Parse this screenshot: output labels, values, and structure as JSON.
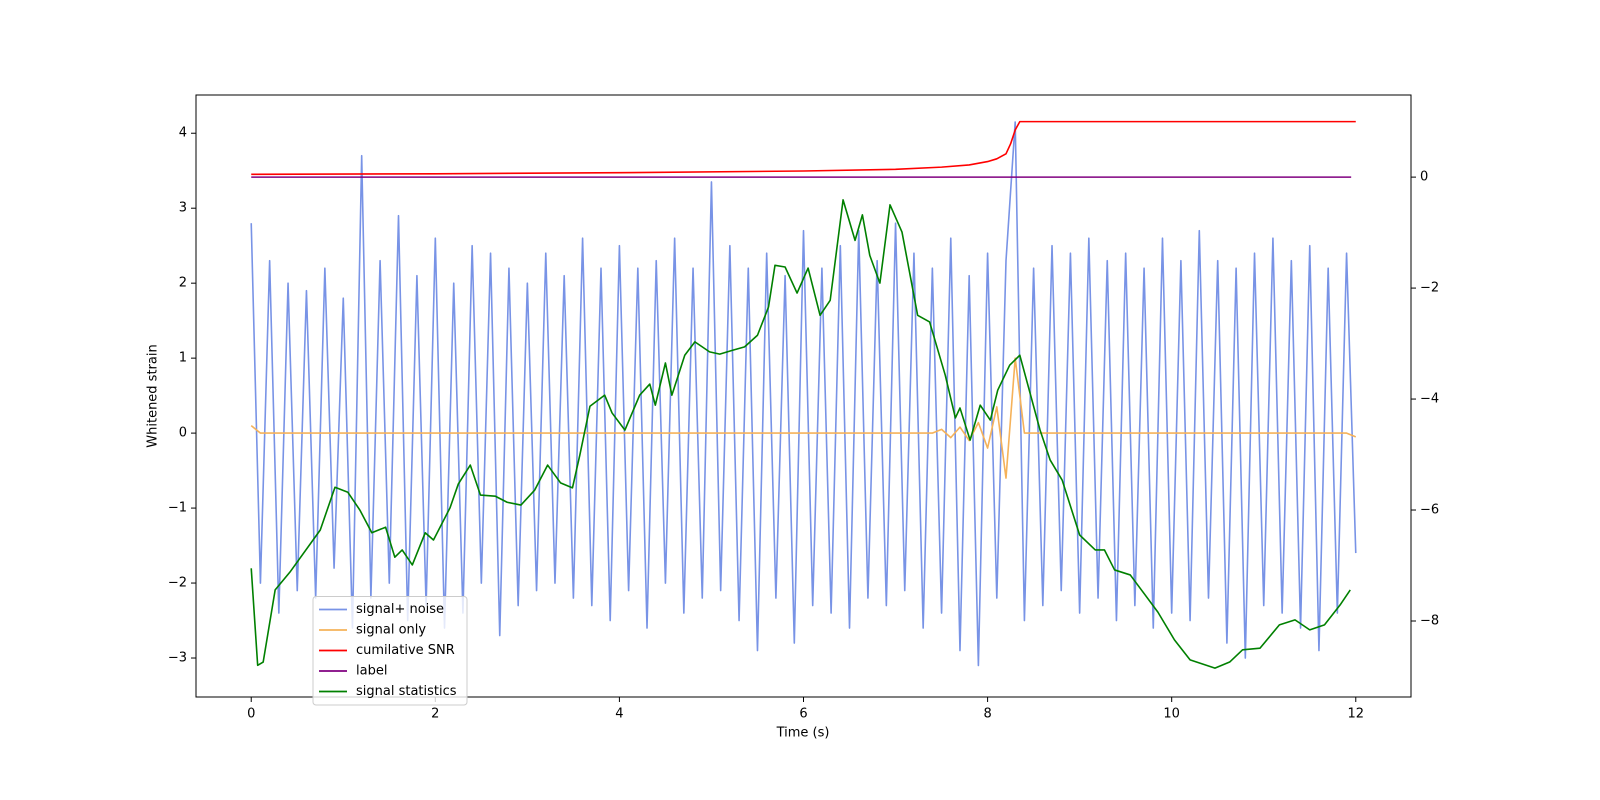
{
  "chart_data": {
    "type": "line",
    "xlabel": "Time (s)",
    "ylabel": "Whitened strain",
    "xlim": [
      -0.6,
      12.6
    ],
    "ylim": [
      -3.52,
      4.51
    ],
    "y2lim": [
      -9.37,
      1.48
    ],
    "xticks": [
      0,
      2,
      4,
      6,
      8,
      10,
      12
    ],
    "yticks": [
      {
        "value": -3,
        "label": "−3"
      },
      {
        "value": -2,
        "label": "−2"
      },
      {
        "value": -1,
        "label": "−1"
      },
      0,
      1,
      2,
      3,
      4
    ],
    "y2ticks": [
      {
        "value": -8,
        "label": "−8"
      },
      {
        "value": -6,
        "label": "−6"
      },
      {
        "value": -4,
        "label": "−4"
      },
      {
        "value": -2,
        "label": "−2"
      },
      0
    ],
    "legend": "lower left",
    "x": [
      0,
      0.1,
      0.2,
      0.3,
      0.4,
      0.5,
      0.6,
      0.7,
      0.8,
      0.9,
      1,
      1.1,
      1.2,
      1.3,
      1.4,
      1.5,
      1.6,
      1.7,
      1.8,
      1.9,
      2,
      2.1,
      2.2,
      2.3,
      2.4,
      2.5,
      2.6,
      2.7,
      2.8,
      2.9,
      3,
      3.1,
      3.2,
      3.3,
      3.4,
      3.5,
      3.6,
      3.7,
      3.8,
      3.9,
      4,
      4.1,
      4.2,
      4.3,
      4.4,
      4.5,
      4.6,
      4.7,
      4.8,
      4.9,
      5,
      5.1,
      5.2,
      5.3,
      5.4,
      5.5,
      5.6,
      5.7,
      5.8,
      5.9,
      6,
      6.1,
      6.2,
      6.3,
      6.4,
      6.5,
      6.6,
      6.7,
      6.8,
      6.9,
      7,
      7.1,
      7.2,
      7.3,
      7.4,
      7.5,
      7.6,
      7.7,
      7.8,
      7.9,
      8,
      8.1,
      8.2,
      8.3,
      8.4,
      8.5,
      8.6,
      8.7,
      8.8,
      8.9,
      9,
      9.1,
      9.2,
      9.3,
      9.4,
      9.5,
      9.6,
      9.7,
      9.8,
      9.9,
      10,
      10.1,
      10.2,
      10.3,
      10.4,
      10.5,
      10.6,
      10.7,
      10.8,
      10.9,
      11,
      11.1,
      11.2,
      11.3,
      11.4,
      11.5,
      11.6,
      11.7,
      11.8,
      11.9,
      12
    ],
    "series": [
      {
        "name": "signal+ noise",
        "color": "#7893e6",
        "axis": "y",
        "values": [
          2.8,
          -2.0,
          2.3,
          -2.4,
          2.0,
          -2.1,
          1.9,
          -2.2,
          2.2,
          -1.8,
          1.8,
          -2.6,
          3.7,
          -2.2,
          2.3,
          -2.0,
          2.9,
          -2.5,
          2.1,
          -2.3,
          2.6,
          -2.6,
          2.0,
          -2.4,
          2.5,
          -2.0,
          2.4,
          -2.7,
          2.2,
          -2.3,
          2.0,
          -2.1,
          2.4,
          -2.0,
          2.1,
          -2.2,
          2.6,
          -2.3,
          2.2,
          -2.5,
          2.5,
          -2.1,
          2.2,
          -2.6,
          2.3,
          -2.0,
          2.6,
          -2.4,
          2.2,
          -2.2,
          3.35,
          -2.1,
          2.5,
          -2.5,
          2.2,
          -2.9,
          2.4,
          -2.2,
          2.1,
          -2.8,
          2.7,
          -2.3,
          2.2,
          -2.4,
          2.5,
          -2.6,
          2.7,
          -2.2,
          2.3,
          -2.3,
          2.8,
          -2.1,
          2.4,
          -2.6,
          2.2,
          -2.4,
          2.6,
          -2.9,
          2.1,
          -3.1,
          2.4,
          -2.2,
          2.3,
          4.15,
          -2.5,
          2.2,
          -2.3,
          2.5,
          -2.1,
          2.4,
          -2.4,
          2.6,
          -2.2,
          2.3,
          -2.5,
          2.4,
          -2.3,
          2.2,
          -2.6,
          2.6,
          -2.4,
          2.3,
          -2.5,
          2.7,
          -2.2,
          2.3,
          -2.8,
          2.2,
          -3.0,
          2.4,
          -2.3,
          2.6,
          -2.4,
          2.3,
          -2.6,
          2.5,
          -2.9,
          2.2,
          -2.4,
          2.4,
          -1.6
        ]
      },
      {
        "name": "signal only",
        "color": "#f5b25a",
        "axis": "y",
        "values": [
          0.1,
          0,
          0,
          0,
          0,
          0,
          0,
          0,
          0,
          0,
          0,
          0,
          0,
          0,
          0,
          0,
          0,
          0,
          0,
          0,
          0,
          0,
          0,
          0,
          0,
          0,
          0,
          0,
          0,
          0,
          0,
          0,
          0,
          0,
          0,
          0,
          0,
          0,
          0,
          0,
          0,
          0,
          0,
          0,
          0,
          0,
          0,
          0,
          0,
          0,
          0,
          0,
          0,
          0,
          0,
          0,
          0,
          0,
          0,
          0,
          0,
          0,
          0,
          0,
          0,
          0,
          0,
          0,
          0,
          0,
          0,
          0,
          0,
          0,
          0,
          0.05,
          -0.06,
          0.08,
          -0.1,
          0.14,
          -0.2,
          0.35,
          -0.6,
          1.0,
          0,
          0,
          0,
          0,
          0,
          0,
          0,
          0,
          0,
          0,
          0,
          0,
          0,
          0,
          0,
          0,
          0,
          0,
          0,
          0,
          0,
          0,
          0,
          0,
          0,
          0,
          0,
          0,
          0,
          0,
          0,
          0,
          0,
          0,
          0,
          0,
          -0.05
        ]
      },
      {
        "name": "cumilative SNR",
        "color": "#ff0000",
        "axis": "y2",
        "x": [
          0,
          2,
          4,
          6,
          7,
          7.5,
          7.8,
          8.0,
          8.1,
          8.2,
          8.25,
          8.3,
          8.35,
          12
        ],
        "values": [
          0.05,
          0.06,
          0.08,
          0.11,
          0.14,
          0.18,
          0.22,
          0.28,
          0.33,
          0.42,
          0.6,
          0.85,
          1.0,
          1.0
        ]
      },
      {
        "name": "label",
        "color": "#800080",
        "axis": "y2",
        "x": [
          0,
          11.95
        ],
        "values": [
          0,
          0
        ]
      },
      {
        "name": "signal statistics",
        "color": "#008000",
        "axis": "y2",
        "x": [
          0,
          0.07,
          0.13,
          0.26,
          0.42,
          0.75,
          0.91,
          1.05,
          1.18,
          1.31,
          1.46,
          1.56,
          1.64,
          1.75,
          1.89,
          1.98,
          2.16,
          2.25,
          2.38,
          2.49,
          2.65,
          2.78,
          2.93,
          3.08,
          3.22,
          3.36,
          3.49,
          3.57,
          3.68,
          3.84,
          3.92,
          4.06,
          4.22,
          4.33,
          4.39,
          4.5,
          4.57,
          4.71,
          4.82,
          4.98,
          5.09,
          5.23,
          5.36,
          5.5,
          5.62,
          5.69,
          5.8,
          5.93,
          6.05,
          6.18,
          6.29,
          6.43,
          6.56,
          6.64,
          6.72,
          6.83,
          6.94,
          7.07,
          7.24,
          7.37,
          7.54,
          7.65,
          7.7,
          7.81,
          7.92,
          8.03,
          8.11,
          8.24,
          8.35,
          8.57,
          8.68,
          8.81,
          9.0,
          9.17,
          9.27,
          9.38,
          9.55,
          9.85,
          10.03,
          10.2,
          10.47,
          10.63,
          10.77,
          10.96,
          11.17,
          11.34,
          11.5,
          11.66,
          11.83,
          11.94
        ],
        "values": [
          -7.05,
          -8.8,
          -8.74,
          -7.44,
          -7.12,
          -6.36,
          -5.59,
          -5.68,
          -6.0,
          -6.41,
          -6.31,
          -6.85,
          -6.72,
          -6.99,
          -6.41,
          -6.54,
          -5.96,
          -5.53,
          -5.19,
          -5.73,
          -5.75,
          -5.86,
          -5.91,
          -5.64,
          -5.19,
          -5.51,
          -5.6,
          -5.01,
          -4.13,
          -3.93,
          -4.25,
          -4.56,
          -3.93,
          -3.73,
          -4.11,
          -3.35,
          -3.93,
          -3.21,
          -2.97,
          -3.15,
          -3.19,
          -3.12,
          -3.06,
          -2.85,
          -2.34,
          -1.59,
          -1.62,
          -2.09,
          -1.64,
          -2.49,
          -2.22,
          -0.41,
          -1.14,
          -0.68,
          -1.41,
          -1.91,
          -0.5,
          -0.99,
          -2.49,
          -2.61,
          -3.57,
          -4.34,
          -4.16,
          -4.74,
          -4.11,
          -4.38,
          -3.84,
          -3.39,
          -3.21,
          -4.56,
          -5.1,
          -5.46,
          -6.45,
          -6.72,
          -6.72,
          -7.08,
          -7.17,
          -7.84,
          -8.34,
          -8.7,
          -8.85,
          -8.74,
          -8.52,
          -8.49,
          -8.07,
          -7.98,
          -8.16,
          -8.07,
          -7.71,
          -7.44
        ]
      }
    ]
  }
}
